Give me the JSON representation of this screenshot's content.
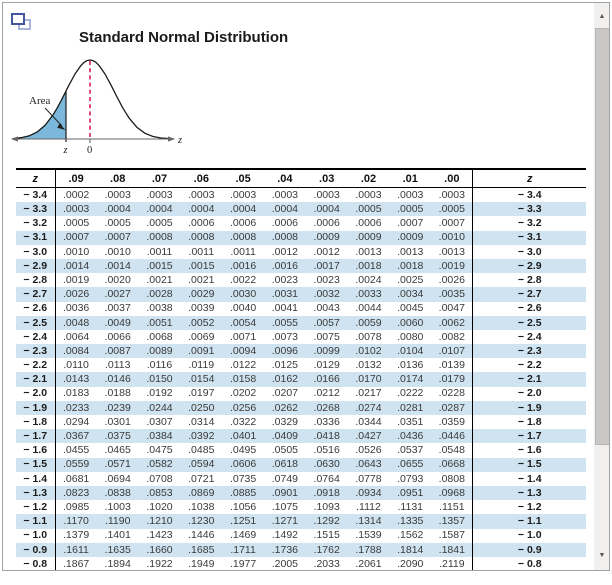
{
  "title": "Standard Normal Distribution",
  "diagram": {
    "area_label": "Area",
    "axis_label": "z",
    "z_tick_label": "z",
    "zero_tick_label": "0",
    "curve_fill_color": "#7bb8dc",
    "dashed_line_color": "#d81b60"
  },
  "table": {
    "stripe_color": "#cfe4f0",
    "headers": [
      "z",
      ".09",
      ".08",
      ".07",
      ".06",
      ".05",
      ".04",
      ".03",
      ".02",
      ".01",
      ".00",
      "z"
    ],
    "rows": [
      {
        "z": "− 3.4",
        "values": [
          ".0002",
          ".0003",
          ".0003",
          ".0003",
          ".0003",
          ".0003",
          ".0003",
          ".0003",
          ".0003",
          ".0003"
        ]
      },
      {
        "z": "− 3.3",
        "values": [
          ".0003",
          ".0004",
          ".0004",
          ".0004",
          ".0004",
          ".0004",
          ".0004",
          ".0005",
          ".0005",
          ".0005"
        ]
      },
      {
        "z": "− 3.2",
        "values": [
          ".0005",
          ".0005",
          ".0005",
          ".0006",
          ".0006",
          ".0006",
          ".0006",
          ".0006",
          ".0007",
          ".0007"
        ]
      },
      {
        "z": "− 3.1",
        "values": [
          ".0007",
          ".0007",
          ".0008",
          ".0008",
          ".0008",
          ".0008",
          ".0009",
          ".0009",
          ".0009",
          ".0010"
        ]
      },
      {
        "z": "− 3.0",
        "values": [
          ".0010",
          ".0010",
          ".0011",
          ".0011",
          ".0011",
          ".0012",
          ".0012",
          ".0013",
          ".0013",
          ".0013"
        ]
      },
      {
        "z": "− 2.9",
        "values": [
          ".0014",
          ".0014",
          ".0015",
          ".0015",
          ".0016",
          ".0016",
          ".0017",
          ".0018",
          ".0018",
          ".0019"
        ]
      },
      {
        "z": "− 2.8",
        "values": [
          ".0019",
          ".0020",
          ".0021",
          ".0021",
          ".0022",
          ".0023",
          ".0023",
          ".0024",
          ".0025",
          ".0026"
        ]
      },
      {
        "z": "− 2.7",
        "values": [
          ".0026",
          ".0027",
          ".0028",
          ".0029",
          ".0030",
          ".0031",
          ".0032",
          ".0033",
          ".0034",
          ".0035"
        ]
      },
      {
        "z": "− 2.6",
        "values": [
          ".0036",
          ".0037",
          ".0038",
          ".0039",
          ".0040",
          ".0041",
          ".0043",
          ".0044",
          ".0045",
          ".0047"
        ]
      },
      {
        "z": "− 2.5",
        "values": [
          ".0048",
          ".0049",
          ".0051",
          ".0052",
          ".0054",
          ".0055",
          ".0057",
          ".0059",
          ".0060",
          ".0062"
        ]
      },
      {
        "z": "− 2.4",
        "values": [
          ".0064",
          ".0066",
          ".0068",
          ".0069",
          ".0071",
          ".0073",
          ".0075",
          ".0078",
          ".0080",
          ".0082"
        ]
      },
      {
        "z": "− 2.3",
        "values": [
          ".0084",
          ".0087",
          ".0089",
          ".0091",
          ".0094",
          ".0096",
          ".0099",
          ".0102",
          ".0104",
          ".0107"
        ]
      },
      {
        "z": "− 2.2",
        "values": [
          ".0110",
          ".0113",
          ".0116",
          ".0119",
          ".0122",
          ".0125",
          ".0129",
          ".0132",
          ".0136",
          ".0139"
        ]
      },
      {
        "z": "− 2.1",
        "values": [
          ".0143",
          ".0146",
          ".0150",
          ".0154",
          ".0158",
          ".0162",
          ".0166",
          ".0170",
          ".0174",
          ".0179"
        ]
      },
      {
        "z": "− 2.0",
        "values": [
          ".0183",
          ".0188",
          ".0192",
          ".0197",
          ".0202",
          ".0207",
          ".0212",
          ".0217",
          ".0222",
          ".0228"
        ]
      },
      {
        "z": "− 1.9",
        "values": [
          ".0233",
          ".0239",
          ".0244",
          ".0250",
          ".0256",
          ".0262",
          ".0268",
          ".0274",
          ".0281",
          ".0287"
        ]
      },
      {
        "z": "− 1.8",
        "values": [
          ".0294",
          ".0301",
          ".0307",
          ".0314",
          ".0322",
          ".0329",
          ".0336",
          ".0344",
          ".0351",
          ".0359"
        ]
      },
      {
        "z": "− 1.7",
        "values": [
          ".0367",
          ".0375",
          ".0384",
          ".0392",
          ".0401",
          ".0409",
          ".0418",
          ".0427",
          ".0436",
          ".0446"
        ]
      },
      {
        "z": "− 1.6",
        "values": [
          ".0455",
          ".0465",
          ".0475",
          ".0485",
          ".0495",
          ".0505",
          ".0516",
          ".0526",
          ".0537",
          ".0548"
        ]
      },
      {
        "z": "− 1.5",
        "values": [
          ".0559",
          ".0571",
          ".0582",
          ".0594",
          ".0606",
          ".0618",
          ".0630",
          ".0643",
          ".0655",
          ".0668"
        ]
      },
      {
        "z": "− 1.4",
        "values": [
          ".0681",
          ".0694",
          ".0708",
          ".0721",
          ".0735",
          ".0749",
          ".0764",
          ".0778",
          ".0793",
          ".0808"
        ]
      },
      {
        "z": "− 1.3",
        "values": [
          ".0823",
          ".0838",
          ".0853",
          ".0869",
          ".0885",
          ".0901",
          ".0918",
          ".0934",
          ".0951",
          ".0968"
        ]
      },
      {
        "z": "− 1.2",
        "values": [
          ".0985",
          ".1003",
          ".1020",
          ".1038",
          ".1056",
          ".1075",
          ".1093",
          ".1112",
          ".1131",
          ".1151"
        ]
      },
      {
        "z": "− 1.1",
        "values": [
          ".1170",
          ".1190",
          ".1210",
          ".1230",
          ".1251",
          ".1271",
          ".1292",
          ".1314",
          ".1335",
          ".1357"
        ]
      },
      {
        "z": "− 1.0",
        "values": [
          ".1379",
          ".1401",
          ".1423",
          ".1446",
          ".1469",
          ".1492",
          ".1515",
          ".1539",
          ".1562",
          ".1587"
        ]
      },
      {
        "z": "− 0.9",
        "values": [
          ".1611",
          ".1635",
          ".1660",
          ".1685",
          ".1711",
          ".1736",
          ".1762",
          ".1788",
          ".1814",
          ".1841"
        ]
      },
      {
        "z": "− 0.8",
        "values": [
          ".1867",
          ".1894",
          ".1922",
          ".1949",
          ".1977",
          ".2005",
          ".2033",
          ".2061",
          ".2090",
          ".2119"
        ]
      }
    ]
  },
  "scrollbar": {
    "up_arrow": "▲",
    "down_arrow": "▼"
  }
}
